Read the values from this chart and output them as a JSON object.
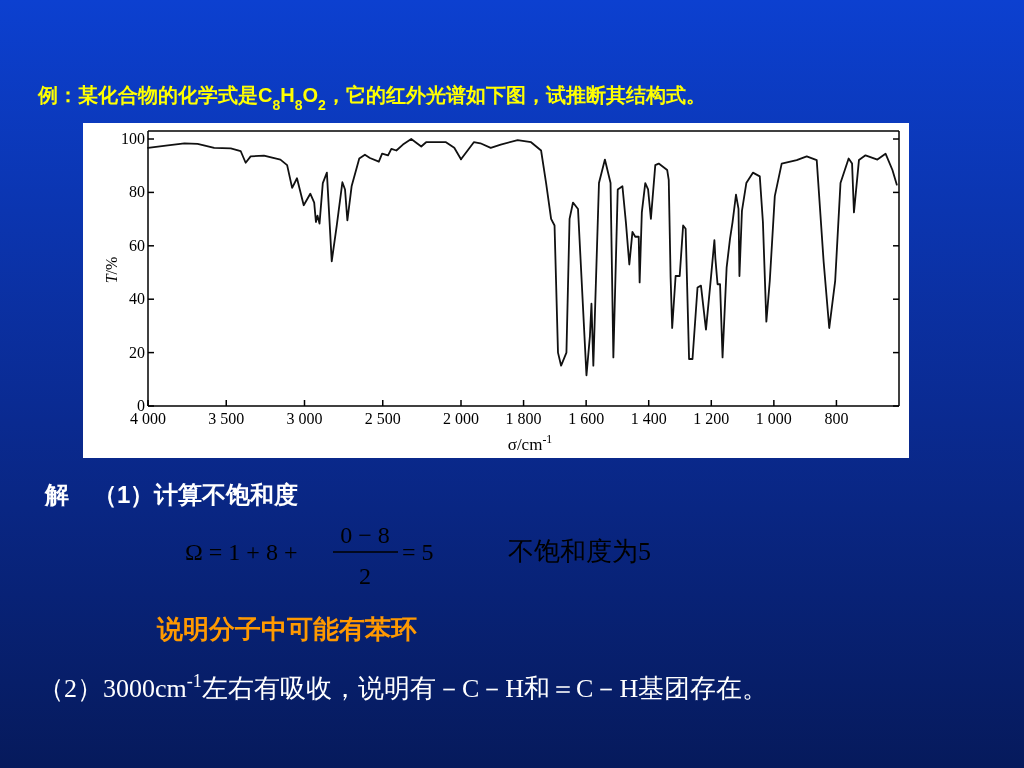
{
  "chart_data": [
    {
      "type": "line",
      "title": "例：某化合物的化学式是C$_{8}$H$_{8}$O$_{2}$，它的红外光谱如下图，试推断其结构式。",
      "ylabel": "*T*/%",
      "color": "#111111",
      "xlim": [
        4000,
        2000
      ],
      "ylim": [
        0,
        103
      ],
      "xticks": [
        {
          "value": 4000,
          "label": "4 000"
        },
        {
          "value": 3500,
          "label": "3 500"
        },
        {
          "value": 3000,
          "label": "3 000"
        },
        {
          "value": 2500,
          "label": "2 500"
        },
        {
          "value": 2000,
          "label": "2 000"
        }
      ],
      "yticks": [
        0,
        20,
        40,
        60,
        80,
        100
      ],
      "x": [
        4000,
        3873,
        3767,
        3683,
        3577,
        3471,
        3408,
        3376,
        3344,
        3259,
        3154,
        3111,
        3079,
        3048,
        3005,
        2963,
        2938,
        2927,
        2917,
        2904,
        2883,
        2857,
        2826,
        2794,
        2783,
        2758,
        2741,
        2726,
        2699,
        2650,
        2614,
        2582,
        2525,
        2504,
        2466,
        2445,
        2413,
        2371,
        2318,
        2254,
        2223,
        2096,
        2043,
        2000
      ],
      "values": [
        96.7,
        97.6,
        98.4,
        98.2,
        96.7,
        96.5,
        95.5,
        91.1,
        93.5,
        93.8,
        92.3,
        90.2,
        81.7,
        85.3,
        75.2,
        79.5,
        76.2,
        68.9,
        71.3,
        68.3,
        83.5,
        87.4,
        54.2,
        67.6,
        72.5,
        83.8,
        81.1,
        69.5,
        82.3,
        92.7,
        94.1,
        92.9,
        91.5,
        94.5,
        93.9,
        96.3,
        95.7,
        97.9,
        100,
        97.2,
        98.8,
        98.8,
        96.7,
        92.4
      ],
      "annotations": [
        "解　（1）计算不饱和度",
        "Ω = 1 + 8 +",
        "0 − 8",
        "2",
        "= 5",
        "不饱和度为5",
        "说明分子中可能有苯环",
        "（2）3000cm$^{-1}$左右有吸收，说明有－C－H和＝C－H基团存在。"
      ]
    },
    {
      "type": "line",
      "xlabel": "σ/cm$^{-1}$",
      "color": "#111111",
      "tick_labels": "x",
      "xlim": [
        2000,
        600
      ],
      "ylim": [
        0,
        103
      ],
      "xticks": [
        {
          "value": 1800,
          "label": "1 800"
        },
        {
          "value": 1600,
          "label": "1 600"
        },
        {
          "value": 1400,
          "label": "1 400"
        },
        {
          "value": 1200,
          "label": "1 200"
        },
        {
          "value": 1000,
          "label": "1 000"
        },
        800
      ],
      "yticks": [
        0,
        20,
        40,
        60,
        80,
        100
      ],
      "x": [
        2000,
        1959,
        1938,
        1905,
        1873,
        1819,
        1776,
        1744,
        1728,
        1712,
        1701,
        1690,
        1680,
        1663,
        1653,
        1642,
        1626,
        1599,
        1588,
        1583,
        1577,
        1559,
        1540,
        1522,
        1513,
        1499,
        1484,
        1473,
        1462,
        1452,
        1443,
        1432,
        1429,
        1422,
        1411,
        1402,
        1393,
        1379,
        1368,
        1341,
        1336,
        1330,
        1325,
        1314,
        1301,
        1290,
        1282,
        1271,
        1260,
        1244,
        1233,
        1217,
        1204,
        1190,
        1187,
        1180,
        1172,
        1164,
        1151,
        1140,
        1132,
        1121,
        1113,
        1110,
        1102,
        1088,
        1067,
        1045,
        1035,
        1024,
        1013,
        997,
        975,
        927,
        895,
        863,
        841,
        823,
        804,
        787,
        761,
        750,
        744,
        728,
        707,
        669,
        643,
        621,
        607
      ],
      "values": [
        92.4,
        98.8,
        98.4,
        96.7,
        97.9,
        99.6,
        98.8,
        95.7,
        83.5,
        70.1,
        67.6,
        20,
        15.1,
        20,
        70.1,
        76.2,
        73.8,
        11.5,
        26.1,
        38.3,
        15.1,
        83.5,
        92.3,
        83.5,
        18.2,
        81.1,
        82.3,
        68.9,
        53,
        65.2,
        63.4,
        63.4,
        46.3,
        72.5,
        83.5,
        81.1,
        70.1,
        90.2,
        90.8,
        88.4,
        84.7,
        48.1,
        29.2,
        48.7,
        48.7,
        67.6,
        66.4,
        17.6,
        17.6,
        44.4,
        45.1,
        28.6,
        44.4,
        62.1,
        55.4,
        45.6,
        45.6,
        18.2,
        51.8,
        62.8,
        68.9,
        79.2,
        73.8,
        48.7,
        73.1,
        83.5,
        87.4,
        86,
        68.9,
        31.6,
        46.9,
        78.6,
        90.8,
        92.1,
        93.5,
        92.1,
        54.2,
        29.2,
        46.9,
        83.5,
        92.7,
        90.8,
        72.5,
        92.1,
        93.9,
        92.3,
        94.5,
        88.4,
        82.9
      ]
    }
  ]
}
